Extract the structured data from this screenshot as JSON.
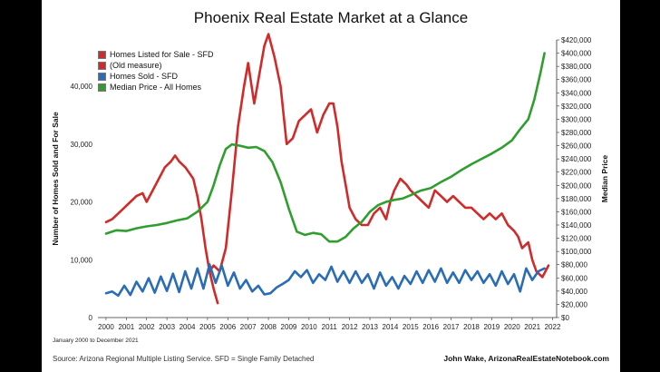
{
  "chart_data": {
    "type": "line",
    "title": "Phoenix Real Estate Market at a Glance",
    "xlabel": "",
    "ylabel": "Number of Homes Sold and For Sale",
    "y2label": "Median Price",
    "xlim": [
      1999.6,
      2022.2
    ],
    "ylim": [
      0,
      48000
    ],
    "y2lim": [
      0,
      420000
    ],
    "x_ticks": [
      "2000",
      "2001",
      "2002",
      "2003",
      "2004",
      "2005",
      "2006",
      "2007",
      "2008",
      "2009",
      "2010",
      "2011",
      "2012",
      "2013",
      "2014",
      "2015",
      "2016",
      "2017",
      "2018",
      "2019",
      "2020",
      "2021",
      "2022"
    ],
    "y_ticks": [
      "0",
      "10,000",
      "20,000",
      "30,000",
      "40,000"
    ],
    "y2_ticks": [
      "$0",
      "$20,000",
      "$40,000",
      "$60,000",
      "$80,000",
      "$100,000",
      "$120,000",
      "$140,000",
      "$160,000",
      "$180,000",
      "$200,000",
      "$220,000",
      "$240,000",
      "$260,000",
      "$280,000",
      "$300,000",
      "$320,000",
      "$340,000",
      "$360,000",
      "$380,000",
      "$400,000",
      "$420,000"
    ],
    "series": [
      {
        "name": "Homes Listed for Sale - SFD",
        "color": "#d12a2a",
        "axis": "left",
        "x": [
          2005.1,
          2005.3,
          2005.6,
          2005.9,
          2006.2,
          2006.5,
          2006.8,
          2007.0,
          2007.3,
          2007.6,
          2007.8,
          2008.0,
          2008.3,
          2008.6,
          2008.9,
          2009.2,
          2009.5,
          2009.8,
          2010.1,
          2010.4,
          2010.7,
          2011.0,
          2011.2,
          2011.4,
          2011.6,
          2011.8,
          2012.0,
          2012.3,
          2012.6,
          2012.9,
          2013.2,
          2013.5,
          2013.8,
          2014.0,
          2014.2,
          2014.5,
          2014.8,
          2015.0,
          2015.3,
          2015.6,
          2015.9,
          2016.2,
          2016.5,
          2016.8,
          2017.1,
          2017.4,
          2017.7,
          2018.0,
          2018.3,
          2018.6,
          2018.9,
          2019.2,
          2019.5,
          2019.8,
          2020.1,
          2020.3,
          2020.5,
          2020.8,
          2021.0,
          2021.2,
          2021.5,
          2021.8
        ],
        "y": [
          8000,
          9000,
          8000,
          12000,
          22000,
          33000,
          40000,
          44000,
          37000,
          43000,
          47000,
          49000,
          45000,
          40000,
          30000,
          31000,
          34000,
          35000,
          36000,
          32000,
          35000,
          37000,
          37000,
          33000,
          27000,
          23000,
          19000,
          17000,
          16000,
          16000,
          18000,
          19000,
          17000,
          20000,
          22000,
          24000,
          23000,
          22000,
          21000,
          20000,
          19000,
          22000,
          21000,
          20000,
          21000,
          20000,
          19000,
          19000,
          18000,
          17000,
          18000,
          17000,
          18000,
          16000,
          15000,
          14000,
          12000,
          13000,
          10000,
          8000,
          7000,
          9000
        ]
      },
      {
        "name": "(Old measure)",
        "color": "#d12a2a",
        "axis": "left",
        "x": [
          2000.0,
          2000.3,
          2000.6,
          2000.9,
          2001.2,
          2001.5,
          2001.8,
          2002.0,
          2002.3,
          2002.6,
          2002.9,
          2003.2,
          2003.4,
          2003.6,
          2003.9,
          2004.1,
          2004.3,
          2004.5,
          2004.7,
          2004.9,
          2005.1,
          2005.3,
          2005.5
        ],
        "y": [
          16500,
          17000,
          18000,
          19000,
          20000,
          21000,
          21500,
          20000,
          22000,
          24000,
          26000,
          27000,
          28000,
          27000,
          26000,
          25000,
          24000,
          21000,
          17000,
          12000,
          8000,
          5000,
          2500
        ]
      },
      {
        "name": "Homes Sold - SFD",
        "color": "#2a6cb5",
        "axis": "left",
        "x": [
          2000.0,
          2000.3,
          2000.6,
          2000.9,
          2001.2,
          2001.5,
          2001.8,
          2002.1,
          2002.4,
          2002.7,
          2003.0,
          2003.3,
          2003.6,
          2003.9,
          2004.2,
          2004.5,
          2004.8,
          2005.1,
          2005.4,
          2005.7,
          2006.0,
          2006.3,
          2006.6,
          2006.9,
          2007.2,
          2007.5,
          2007.8,
          2008.1,
          2008.4,
          2008.7,
          2009.0,
          2009.3,
          2009.6,
          2009.9,
          2010.2,
          2010.5,
          2010.8,
          2011.1,
          2011.4,
          2011.7,
          2012.0,
          2012.3,
          2012.6,
          2012.9,
          2013.2,
          2013.5,
          2013.8,
          2014.1,
          2014.4,
          2014.7,
          2015.0,
          2015.3,
          2015.6,
          2015.9,
          2016.2,
          2016.5,
          2016.8,
          2017.1,
          2017.4,
          2017.7,
          2018.0,
          2018.3,
          2018.6,
          2018.9,
          2019.2,
          2019.5,
          2019.8,
          2020.1,
          2020.4,
          2020.7,
          2021.0,
          2021.3,
          2021.6
        ],
        "y": [
          4200,
          4500,
          3800,
          5500,
          3900,
          6200,
          4500,
          6800,
          4300,
          7100,
          4600,
          7600,
          4400,
          8000,
          5000,
          8500,
          5000,
          9200,
          6000,
          9000,
          5500,
          7800,
          5000,
          6500,
          4500,
          5500,
          4000,
          4200,
          5200,
          5800,
          6500,
          8000,
          7000,
          8200,
          6000,
          7500,
          6500,
          8800,
          6200,
          8000,
          6000,
          8000,
          6000,
          7500,
          5000,
          7800,
          5500,
          7000,
          5000,
          7200,
          5800,
          8000,
          6000,
          8200,
          6200,
          8500,
          6000,
          7800,
          6000,
          8200,
          6500,
          8000,
          6000,
          7500,
          5500,
          8000,
          5800,
          7500,
          4500,
          8500,
          6500,
          8000,
          8500
        ]
      },
      {
        "name": "Median Price - All Homes",
        "color": "#2f9e2f",
        "axis": "right",
        "x": [
          2000.0,
          2000.5,
          2001.0,
          2001.5,
          2002.0,
          2002.5,
          2003.0,
          2003.5,
          2004.0,
          2004.5,
          2005.0,
          2005.3,
          2005.6,
          2005.9,
          2006.2,
          2006.6,
          2007.0,
          2007.4,
          2007.8,
          2008.2,
          2008.6,
          2009.0,
          2009.4,
          2009.8,
          2010.2,
          2010.6,
          2011.0,
          2011.4,
          2011.8,
          2012.2,
          2012.6,
          2013.0,
          2013.4,
          2013.8,
          2014.2,
          2014.6,
          2015.0,
          2015.5,
          2016.0,
          2016.5,
          2017.0,
          2017.5,
          2018.0,
          2018.5,
          2019.0,
          2019.5,
          2020.0,
          2020.4,
          2020.8,
          2021.1,
          2021.4,
          2021.6
        ],
        "y": [
          127000,
          132000,
          131000,
          135000,
          138000,
          140000,
          143000,
          147000,
          150000,
          160000,
          175000,
          200000,
          230000,
          255000,
          262000,
          260000,
          257000,
          258000,
          252000,
          235000,
          205000,
          165000,
          130000,
          125000,
          128000,
          126000,
          115000,
          115000,
          122000,
          135000,
          145000,
          160000,
          170000,
          175000,
          178000,
          180000,
          185000,
          192000,
          196000,
          205000,
          213000,
          223000,
          232000,
          240000,
          248000,
          257000,
          268000,
          285000,
          300000,
          330000,
          370000,
          400000
        ]
      }
    ]
  },
  "legend_labels": [
    "Homes Listed for Sale - SFD",
    "(Old measure)",
    "Homes Sold - SFD",
    "Median Price - All Homes"
  ],
  "footer": {
    "period": "January 2000 to December 2021",
    "source": "Source: Arizona Regional Multiple Listing Service. SFD = Single Family Detached",
    "credit": "John Wake, ArizonaRealEstateNotebook.com"
  }
}
